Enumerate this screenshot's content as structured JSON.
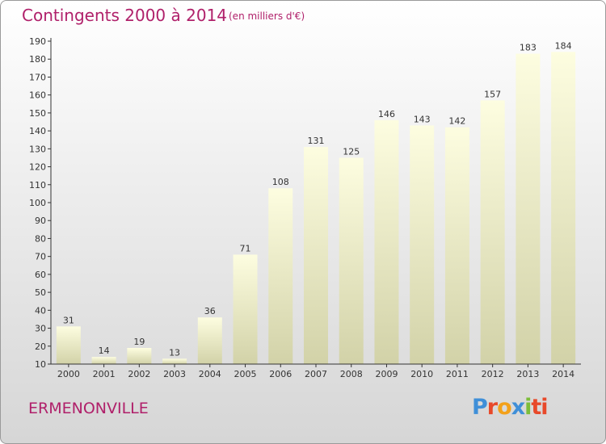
{
  "header": {
    "title": "Contingents 2000 à 2014",
    "subtitle": "(en milliers d'€)"
  },
  "footer": {
    "commune": "ERMENONVILLE",
    "logo_text": "Proxiti"
  },
  "colors": {
    "title": "#b0206a",
    "bar_top": "#fdfde0",
    "bar_bottom": "#d2d2a8",
    "axis": "#333333"
  },
  "chart_data": {
    "type": "bar",
    "categories": [
      "2000",
      "2001",
      "2002",
      "2003",
      "2004",
      "2005",
      "2006",
      "2007",
      "2008",
      "2009",
      "2010",
      "2011",
      "2012",
      "2013",
      "2014"
    ],
    "values": [
      31,
      14,
      19,
      13,
      36,
      71,
      108,
      131,
      125,
      146,
      143,
      142,
      157,
      183,
      184
    ],
    "title": "Contingents 2000 à 2014",
    "subtitle": "(en milliers d'€)",
    "ylim": [
      10,
      190
    ],
    "yticks": [
      10,
      20,
      30,
      40,
      50,
      60,
      70,
      80,
      90,
      100,
      110,
      120,
      130,
      140,
      150,
      160,
      170,
      180,
      190
    ],
    "grid": false,
    "data_labels": true
  }
}
